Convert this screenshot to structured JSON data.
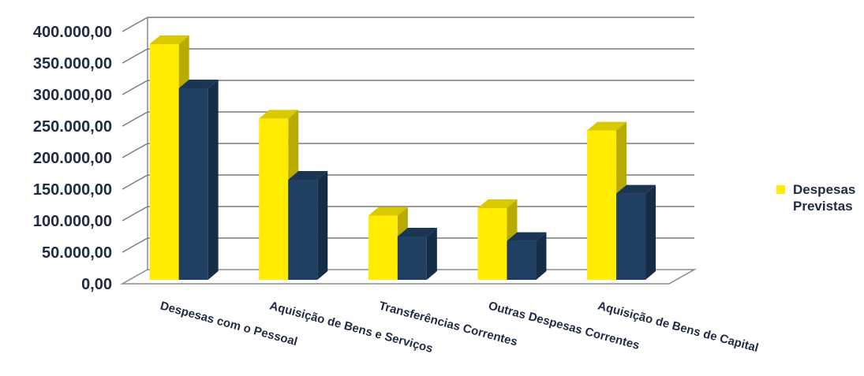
{
  "chart_data": {
    "type": "bar",
    "categories": [
      "Despesas com o Pessoal",
      "Aquisição de Bens e Serviços",
      "Transferências Correntes",
      "Outras Despesas Correntes",
      "Aquisição de Bens de Capital"
    ],
    "series": [
      {
        "name": "Despesas Previstas",
        "color": "#ffec00",
        "values": [
          380000,
          262000,
          108000,
          120000,
          243000
        ]
      },
      {
        "color": "#1f3f63",
        "values": [
          310000,
          165000,
          75000,
          68000,
          143000
        ]
      }
    ],
    "ylim": [
      0,
      400000
    ],
    "yticks": [
      "0,00",
      "50.000,00",
      "100.000,00",
      "150.000,00",
      "200.000,00",
      "250.000,00",
      "300.000,00",
      "350.000,00",
      "400.000,00"
    ],
    "grid": true,
    "legend_position": "right",
    "style": "3d-clustered-column"
  },
  "legend": {
    "label": "Despesas Previstas"
  }
}
